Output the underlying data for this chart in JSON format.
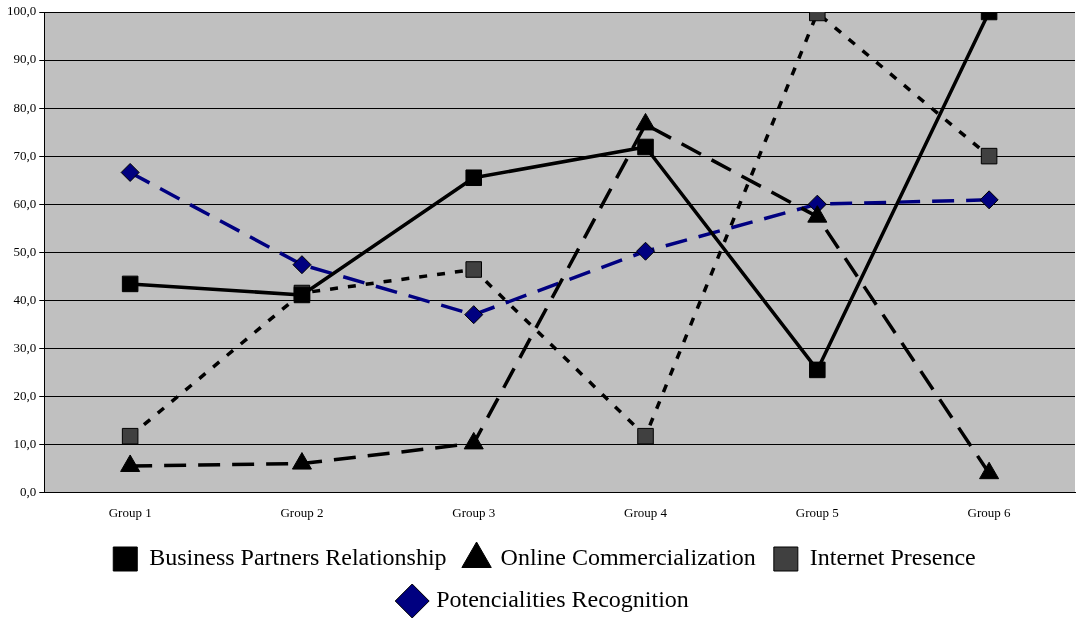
{
  "chart_data": {
    "type": "line",
    "categories": [
      "Group 1",
      "Group 2",
      "Group 3",
      "Group 4",
      "Group 5",
      "Group 6"
    ],
    "series": [
      {
        "name": "Potencialities Recognition",
        "color": "#000080",
        "values": [
          66.6,
          47.4,
          37.0,
          50.2,
          60.0,
          60.9
        ],
        "marker": "diamond",
        "line_style": "dashed"
      },
      {
        "name": "Internet Presence",
        "color": "#404040",
        "values": [
          11.7,
          41.5,
          46.4,
          11.7,
          99.8,
          70.0
        ],
        "marker": "square",
        "line_style": "dotted"
      },
      {
        "name": "Online Commercialization",
        "color": "#000000",
        "values": [
          5.5,
          6.0,
          10.2,
          76.6,
          57.4,
          4.0
        ],
        "marker": "triangle",
        "line_style": "dashed"
      },
      {
        "name": "Business Partners Relationship",
        "color": "#000000",
        "values": [
          43.4,
          41.1,
          65.5,
          71.9,
          25.5,
          100.0
        ],
        "marker": "square",
        "line_style": "solid"
      }
    ],
    "ylim": [
      0,
      100
    ],
    "yticks": [
      {
        "value": 0,
        "label": "0,0"
      },
      {
        "value": 10,
        "label": "10,0"
      },
      {
        "value": 20,
        "label": "20,0"
      },
      {
        "value": 30,
        "label": "30,0"
      },
      {
        "value": 40,
        "label": "40,0"
      },
      {
        "value": 50,
        "label": "50,0"
      },
      {
        "value": 60,
        "label": "60,0"
      },
      {
        "value": 70,
        "label": "70,0"
      },
      {
        "value": 80,
        "label": "80,0"
      },
      {
        "value": 90,
        "label": "90,0"
      },
      {
        "value": 100,
        "label": "100,0"
      }
    ],
    "grid": "y",
    "legend": "bottom"
  }
}
